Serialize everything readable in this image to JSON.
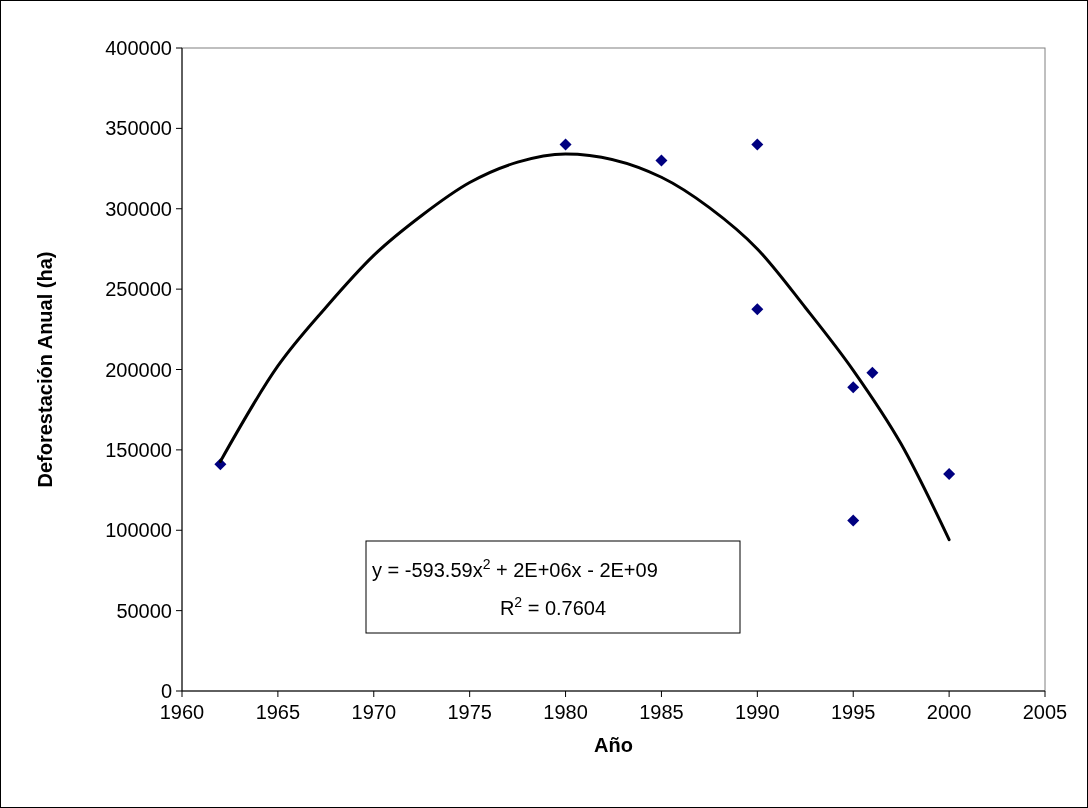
{
  "chart_data": {
    "type": "scatter",
    "xlabel": "Año",
    "ylabel": "Deforestación Anual (ha)",
    "xlim": [
      1960,
      2005
    ],
    "xticks": [
      1960,
      1965,
      1970,
      1975,
      1980,
      1985,
      1990,
      1995,
      2000,
      2005
    ],
    "ylim": [
      0,
      400000
    ],
    "yticks": [
      0,
      50000,
      100000,
      150000,
      200000,
      250000,
      300000,
      350000,
      400000
    ],
    "grid": false,
    "annotations": [
      "y = -593.59x$^{2}$ + 2E+06x - 2E+09",
      "R$^{2}$ = 0.7604"
    ],
    "series": [
      {
        "marker": "diamond",
        "color": "#000080",
        "x": [
          1962,
          1980,
          1985,
          1990,
          1990,
          1995,
          1995,
          1996,
          2000
        ],
        "values": [
          141000,
          340000,
          330000,
          340000,
          237500,
          189000,
          106000,
          198000,
          135000
        ]
      },
      {
        "type": "line",
        "color": "#000000",
        "line_style": "solid",
        "x": [
          1962,
          1965,
          1967.5,
          1970,
          1972.5,
          1975,
          1977.5,
          1980,
          1985,
          1987.5,
          1990,
          1992.5,
          1995,
          1997.5,
          2000
        ],
        "values": [
          142800,
          202200,
          238600,
          271000,
          295800,
          316300,
          329000,
          334100,
          319600,
          300700,
          275000,
          238600,
          199500,
          153600,
          94200
        ]
      }
    ]
  }
}
